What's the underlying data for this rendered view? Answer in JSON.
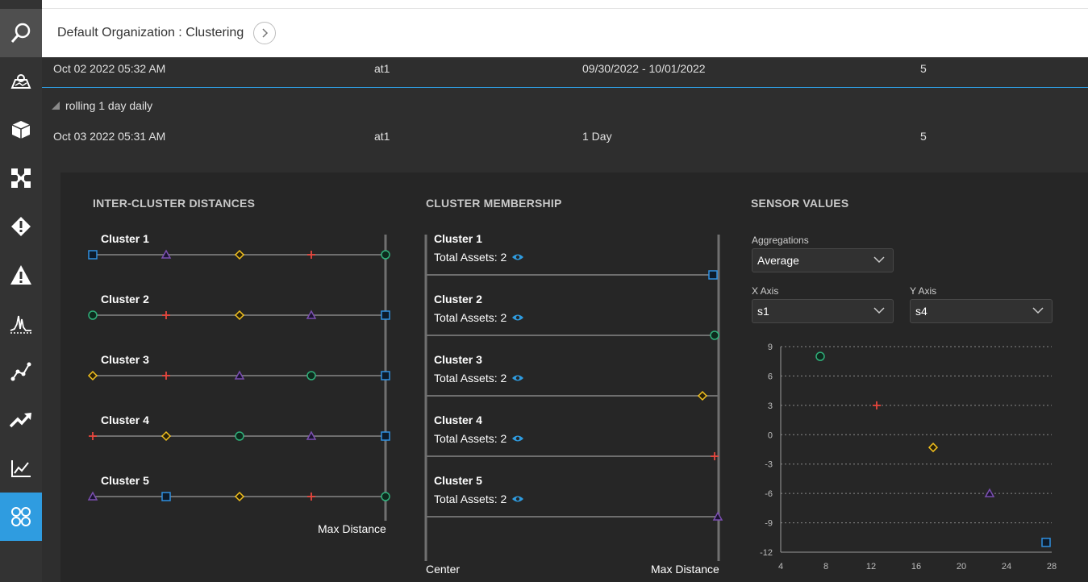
{
  "header": {
    "breadcrumb": "Default Organization : Clustering"
  },
  "sidebar": {
    "items": [
      {
        "name": "search-icon"
      },
      {
        "name": "map-icon"
      },
      {
        "name": "box-icon"
      },
      {
        "name": "network-icon"
      },
      {
        "name": "diamond-alert-icon"
      },
      {
        "name": "warning-icon"
      },
      {
        "name": "waveform-icon"
      },
      {
        "name": "scatter-icon"
      },
      {
        "name": "trend-icon"
      },
      {
        "name": "line-chart-icon"
      },
      {
        "name": "clusters-icon"
      }
    ]
  },
  "runs": {
    "row1": {
      "date": "Oct 02 2022 05:32 AM",
      "asset": "at1",
      "range": "09/30/2022 - 10/01/2022",
      "count": "5"
    },
    "group": "rolling 1 day daily",
    "row2": {
      "date": "Oct 03 2022 05:31 AM",
      "asset": "at1",
      "range": "1 Day",
      "count": "5"
    }
  },
  "distances": {
    "title": "INTER-CLUSTER DISTANCES",
    "max_label": "Max Distance",
    "clusters": [
      {
        "label": "Cluster 1",
        "markers": [
          "square",
          "triangle",
          "diamond",
          "cross",
          "circle"
        ]
      },
      {
        "label": "Cluster 2",
        "markers": [
          "circle",
          "cross",
          "diamond",
          "triangle",
          "square"
        ]
      },
      {
        "label": "Cluster 3",
        "markers": [
          "diamond",
          "cross",
          "triangle",
          "circle",
          "square"
        ]
      },
      {
        "label": "Cluster 4",
        "markers": [
          "cross",
          "diamond",
          "circle",
          "triangle",
          "square"
        ]
      },
      {
        "label": "Cluster 5",
        "markers": [
          "triangle",
          "square",
          "diamond",
          "cross",
          "circle"
        ]
      }
    ]
  },
  "membership": {
    "title": "CLUSTER MEMBERSHIP",
    "center_label": "Center",
    "max_label": "Max Distance",
    "clusters": [
      {
        "label": "Cluster 1",
        "total": "Total Assets: 2",
        "marker": "square"
      },
      {
        "label": "Cluster 2",
        "total": "Total Assets: 2",
        "marker": "circle"
      },
      {
        "label": "Cluster 3",
        "total": "Total Assets: 2",
        "marker": "diamond"
      },
      {
        "label": "Cluster 4",
        "total": "Total Assets: 2",
        "marker": "cross"
      },
      {
        "label": "Cluster 5",
        "total": "Total Assets: 2",
        "marker": "triangle"
      }
    ]
  },
  "sensor": {
    "title": "SENSOR VALUES",
    "aggregations_label": "Aggregations",
    "aggregation_value": "Average",
    "x_axis_label": "X Axis",
    "x_axis_value": "s1",
    "y_axis_label": "Y Axis",
    "y_axis_value": "s4"
  },
  "colors": {
    "square": "#2f8fe0",
    "circle": "#2fb07a",
    "diamond": "#f2c01e",
    "cross": "#e8453c",
    "triangle": "#7b4fb0",
    "accent": "#2f9ce0"
  },
  "chart_data": {
    "type": "scatter",
    "xlim": [
      4,
      28
    ],
    "ylim": [
      -12,
      9
    ],
    "xticks": [
      4,
      8,
      12,
      16,
      20,
      24,
      28
    ],
    "yticks": [
      9,
      6,
      3,
      0,
      -3,
      -6,
      -9,
      -12
    ],
    "grid": true,
    "points": [
      {
        "x": 7.5,
        "y": 8,
        "marker": "circle"
      },
      {
        "x": 12.5,
        "y": 3,
        "marker": "cross"
      },
      {
        "x": 17.5,
        "y": -1.3,
        "marker": "diamond"
      },
      {
        "x": 22.5,
        "y": -6,
        "marker": "triangle"
      },
      {
        "x": 27.5,
        "y": -11,
        "marker": "square"
      }
    ]
  }
}
